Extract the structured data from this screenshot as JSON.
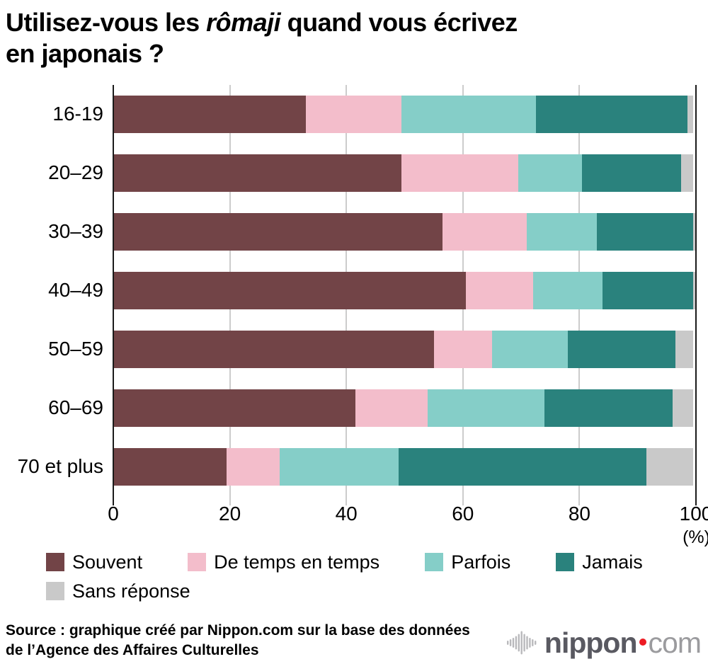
{
  "title": {
    "part1": "Utilisez-vous les ",
    "italic": "rômaji",
    "part2": " quand vous écrivez",
    "line2": "en japonais ?"
  },
  "chart_data": {
    "type": "bar",
    "orientation": "horizontal",
    "stacked": true,
    "categories": [
      "16-19",
      "20–29",
      "30–39",
      "40–49",
      "50–59",
      "60–69",
      "70 et plus"
    ],
    "series": [
      {
        "name": "Souvent",
        "color": "#724447",
        "values": [
          33,
          49.5,
          56.5,
          60.5,
          55,
          41.5,
          19.5
        ]
      },
      {
        "name": "De temps en temps",
        "color": "#f3bdcb",
        "values": [
          16.5,
          20,
          14.5,
          11.5,
          10,
          12.5,
          9
        ]
      },
      {
        "name": "Parfois",
        "color": "#85cec8",
        "values": [
          23,
          11,
          12,
          12,
          13,
          20,
          20.5
        ]
      },
      {
        "name": "Jamais",
        "color": "#2a827d",
        "values": [
          26,
          17,
          16.5,
          15.5,
          18.5,
          22,
          42.5
        ]
      },
      {
        "name": "Sans réponse",
        "color": "#c9c9c9",
        "values": [
          1,
          2,
          0.5,
          0.5,
          3,
          3.5,
          8
        ]
      }
    ],
    "x_ticks": [
      0,
      20,
      40,
      60,
      80,
      100
    ],
    "xlim": [
      0,
      100
    ],
    "x_unit": "(%)",
    "grid": true,
    "gridline_color": "#cccccc",
    "axis_color": "#1a1a1a",
    "legend_position": "bottom"
  },
  "source": {
    "line1": "Source : graphique créé par Nippon.com sur la base des données",
    "line2": "de l’Agence des Affaires Culturelles"
  },
  "logo": {
    "name": "nippon",
    "tld": "com",
    "icon": "soundwave-icon",
    "colors": {
      "name": "#595961",
      "dot": "#ed1c24",
      "tld": "#9b9b9e",
      "icon": "#b9b9bc"
    }
  }
}
